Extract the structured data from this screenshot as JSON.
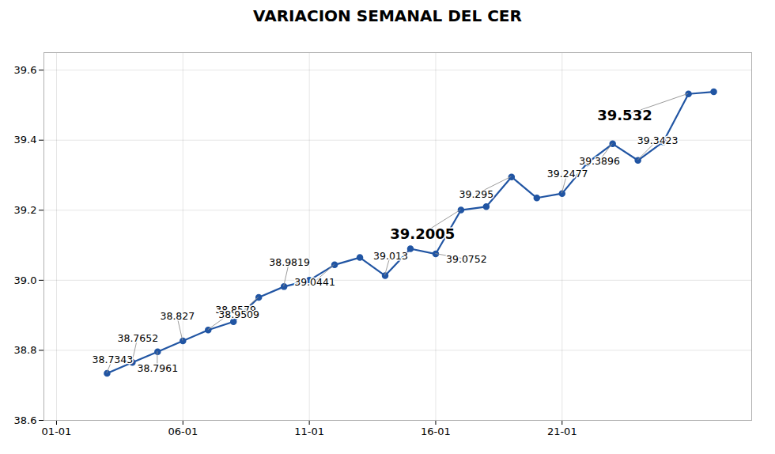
{
  "chart_data": {
    "type": "line",
    "title": "VARIACION SEMANAL DEL CER",
    "x": [
      3,
      4,
      5,
      6,
      7,
      8,
      9,
      10,
      11,
      12,
      13,
      14,
      15,
      16,
      17,
      18,
      19,
      20,
      21,
      22,
      23,
      24,
      25,
      26,
      27
    ],
    "values": [
      38.7343,
      38.7652,
      38.7961,
      38.827,
      38.8579,
      38.8818,
      38.9509,
      38.9819,
      39.0,
      39.0441,
      39.065,
      39.013,
      39.09,
      39.0752,
      39.2005,
      39.21,
      39.295,
      39.235,
      39.2477,
      39.335,
      39.3896,
      39.3423,
      39.395,
      39.532,
      39.538
    ],
    "value_labels": [
      "38.7343",
      "38.7652",
      "38.7961",
      "38.827",
      "38.8579",
      null,
      "38.9509",
      "38.9819",
      null,
      "39.0441",
      null,
      "39.013",
      null,
      "39.0752",
      "39.2005",
      null,
      "39.295",
      null,
      "39.2477",
      null,
      "39.3896",
      "39.3423",
      null,
      "39.532",
      null
    ],
    "data_labels": true,
    "color": "#2155a3",
    "marker": "circle",
    "xlim": [
      0.5,
      28.5
    ],
    "xticks": [
      {
        "value": 1,
        "label": "01-01"
      },
      {
        "value": 6,
        "label": "06-01"
      },
      {
        "value": 11,
        "label": "11-01"
      },
      {
        "value": 16,
        "label": "16-01"
      },
      {
        "value": 21,
        "label": "21-01"
      }
    ],
    "ylim": [
      38.6,
      39.65
    ],
    "yticks": [
      38.6,
      38.8,
      {
        "value": 39,
        "label": "39.0"
      },
      39.2,
      39.4,
      39.6
    ],
    "grid": true
  }
}
